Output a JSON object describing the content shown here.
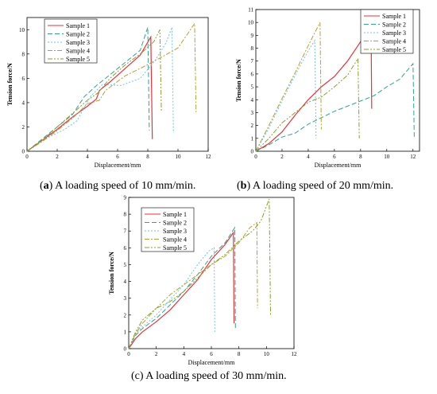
{
  "figure": {
    "colors": {
      "sample1": "#e8333a",
      "sample2": "#2ea58f",
      "sample3": "#6dc7e6",
      "sample4": "#b3a233",
      "sample5": "#8aa02b"
    }
  },
  "chart_data": [
    {
      "id": "a",
      "type": "line",
      "caption_letter": "a",
      "caption_text": " A loading speed of 10 mm/min.",
      "xlabel": "Displacement/mm",
      "ylabel": "Tension force/N",
      "xlim": [
        0,
        12
      ],
      "ylim": [
        0,
        11
      ],
      "xticks": [
        0,
        2,
        4,
        6,
        8,
        10,
        12
      ],
      "yticks": [
        0,
        2,
        4,
        6,
        8,
        10
      ],
      "legend_position": "top-left",
      "series": [
        {
          "name": "Sample 1",
          "points": [
            [
              0,
              0
            ],
            [
              1,
              0.9
            ],
            [
              2,
              1.8
            ],
            [
              3,
              2.8
            ],
            [
              4,
              3.7
            ],
            [
              4.6,
              4.3
            ],
            [
              4.8,
              5.0
            ],
            [
              5.5,
              5.7
            ],
            [
              6.5,
              6.8
            ],
            [
              7.5,
              7.9
            ],
            [
              8.2,
              9.4
            ],
            [
              8.3,
              1.0
            ]
          ]
        },
        {
          "name": "Sample 2",
          "points": [
            [
              0,
              0
            ],
            [
              1,
              1.0
            ],
            [
              2,
              2.0
            ],
            [
              3,
              3.0
            ],
            [
              3.8,
              4.5
            ],
            [
              4.6,
              5.4
            ],
            [
              5.5,
              6.3
            ],
            [
              6.5,
              7.3
            ],
            [
              7.5,
              8.3
            ],
            [
              8.0,
              10.2
            ],
            [
              8.1,
              1.7
            ]
          ]
        },
        {
          "name": "Sample 3",
          "points": [
            [
              0,
              0
            ],
            [
              1.5,
              1.2
            ],
            [
              2.5,
              1.8
            ],
            [
              3.3,
              2.5
            ],
            [
              4.2,
              4.5
            ],
            [
              5,
              5.5
            ],
            [
              6.2,
              5.4
            ],
            [
              7.5,
              6.0
            ],
            [
              8.5,
              7.5
            ],
            [
              9.2,
              8.9
            ],
            [
              9.6,
              10.2
            ],
            [
              9.7,
              1.5
            ]
          ]
        },
        {
          "name": "Sample 4",
          "points": [
            [
              0,
              0
            ],
            [
              1,
              0.8
            ],
            [
              2,
              1.7
            ],
            [
              3,
              2.7
            ],
            [
              4,
              3.9
            ],
            [
              4.8,
              4.2
            ],
            [
              5.2,
              5.0
            ],
            [
              6.5,
              6.2
            ],
            [
              7.8,
              7.0
            ],
            [
              9,
              7.8
            ],
            [
              10,
              8.5
            ],
            [
              10.5,
              9.4
            ],
            [
              11.1,
              10.5
            ],
            [
              11.2,
              3.2
            ]
          ]
        },
        {
          "name": "Sample 5",
          "points": [
            [
              0,
              0
            ],
            [
              1,
              0.9
            ],
            [
              2,
              2.0
            ],
            [
              3,
              3.1
            ],
            [
              4,
              4.2
            ],
            [
              4.7,
              4.8
            ],
            [
              5.5,
              6.0
            ],
            [
              6.5,
              7.1
            ],
            [
              7.5,
              8.0
            ],
            [
              8.4,
              9.0
            ],
            [
              8.8,
              10.0
            ],
            [
              8.9,
              3.3
            ]
          ]
        }
      ]
    },
    {
      "id": "b",
      "type": "line",
      "caption_letter": "b",
      "caption_text": " A loading speed of 20 mm/min.",
      "xlabel": "Displacement/mm",
      "ylabel": "Tension force/N",
      "xlim": [
        0,
        12.5
      ],
      "ylim": [
        0,
        11
      ],
      "xticks": [
        0,
        2,
        4,
        6,
        8,
        10,
        12
      ],
      "yticks": [
        0,
        1,
        2,
        3,
        4,
        5,
        6,
        7,
        8,
        9,
        10,
        11
      ],
      "legend_position": "top-right",
      "series": [
        {
          "name": "Sample 1",
          "points": [
            [
              0,
              0
            ],
            [
              1,
              0.6
            ],
            [
              2,
              1.5
            ],
            [
              3,
              2.8
            ],
            [
              4,
              4.0
            ],
            [
              5,
              5.0
            ],
            [
              6,
              5.8
            ],
            [
              7,
              7.0
            ],
            [
              8,
              8.5
            ],
            [
              8.8,
              10.1
            ],
            [
              8.85,
              3.3
            ]
          ]
        },
        {
          "name": "Sample 2",
          "points": [
            [
              0,
              0
            ],
            [
              1,
              0.5
            ],
            [
              2,
              1.1
            ],
            [
              3,
              1.4
            ],
            [
              4,
              2.1
            ],
            [
              5,
              2.6
            ],
            [
              6,
              3.1
            ],
            [
              7,
              3.5
            ],
            [
              8,
              3.9
            ],
            [
              9,
              4.3
            ],
            [
              10,
              5.0
            ],
            [
              11,
              5.6
            ],
            [
              12,
              6.8
            ],
            [
              12.1,
              1.0
            ]
          ]
        },
        {
          "name": "Sample 3",
          "points": [
            [
              0,
              0
            ],
            [
              1,
              1.8
            ],
            [
              2,
              3.9
            ],
            [
              3,
              5.9
            ],
            [
              4,
              7.8
            ],
            [
              4.5,
              8.6
            ],
            [
              4.6,
              1.0
            ]
          ]
        },
        {
          "name": "Sample 4",
          "points": [
            [
              0,
              0
            ],
            [
              1,
              2.0
            ],
            [
              2,
              4.1
            ],
            [
              3,
              6.1
            ],
            [
              4,
              8.2
            ],
            [
              4.9,
              10.0
            ],
            [
              5.0,
              1.7
            ]
          ]
        },
        {
          "name": "Sample 5",
          "points": [
            [
              0,
              0
            ],
            [
              1,
              1.0
            ],
            [
              2,
              2.2
            ],
            [
              3,
              3.0
            ],
            [
              4,
              3.8
            ],
            [
              5,
              4.2
            ],
            [
              6,
              5.0
            ],
            [
              7,
              5.9
            ],
            [
              7.8,
              7.2
            ],
            [
              7.9,
              1.0
            ]
          ]
        }
      ]
    },
    {
      "id": "c",
      "type": "line",
      "caption_letter": "c",
      "caption_text": " A loading speed of 30 mm/min.",
      "xlabel": "Displacement/mm",
      "ylabel": "Tension force/N",
      "xlim": [
        0,
        12
      ],
      "ylim": [
        0,
        9
      ],
      "xticks": [
        0,
        2,
        4,
        6,
        8,
        10,
        12
      ],
      "yticks": [
        0,
        1,
        2,
        3,
        4,
        5,
        6,
        7,
        8,
        9
      ],
      "legend_position": "top-left",
      "series": [
        {
          "name": "Sample 1",
          "points": [
            [
              0,
              0
            ],
            [
              0.5,
              0.6
            ],
            [
              1,
              1.0
            ],
            [
              2,
              1.6
            ],
            [
              3,
              2.3
            ],
            [
              4,
              3.2
            ],
            [
              5,
              4.1
            ],
            [
              6,
              5.3
            ],
            [
              7,
              6.2
            ],
            [
              7.6,
              6.9
            ],
            [
              7.65,
              1.5
            ]
          ]
        },
        {
          "name": "Sample 2",
          "points": [
            [
              0,
              0
            ],
            [
              0.5,
              0.8
            ],
            [
              1,
              1.2
            ],
            [
              2,
              1.8
            ],
            [
              3,
              2.6
            ],
            [
              4,
              3.4
            ],
            [
              5,
              4.4
            ],
            [
              6,
              5.5
            ],
            [
              7,
              6.3
            ],
            [
              7.7,
              7.2
            ],
            [
              7.75,
              1.2
            ]
          ]
        },
        {
          "name": "Sample 3",
          "points": [
            [
              0,
              0
            ],
            [
              0.4,
              0.8
            ],
            [
              1,
              1.3
            ],
            [
              2,
              2.0
            ],
            [
              3,
              2.9
            ],
            [
              4,
              3.8
            ],
            [
              5,
              5.0
            ],
            [
              5.8,
              5.8
            ],
            [
              6.2,
              6.0
            ],
            [
              6.25,
              1.0
            ]
          ]
        },
        {
          "name": "Sample 4",
          "points": [
            [
              0,
              0
            ],
            [
              0.5,
              0.9
            ],
            [
              1,
              1.5
            ],
            [
              2,
              2.4
            ],
            [
              3,
              3.2
            ],
            [
              4,
              3.8
            ],
            [
              5,
              4.4
            ],
            [
              6,
              5.0
            ],
            [
              7,
              5.5
            ],
            [
              8,
              6.3
            ],
            [
              8.8,
              7.2
            ],
            [
              9.3,
              7.5
            ],
            [
              9.35,
              2.4
            ]
          ]
        },
        {
          "name": "Sample 5",
          "points": [
            [
              0,
              0
            ],
            [
              0.5,
              1.0
            ],
            [
              1,
              1.7
            ],
            [
              2,
              2.4
            ],
            [
              3,
              2.8
            ],
            [
              4,
              3.4
            ],
            [
              5,
              4.2
            ],
            [
              6,
              5.0
            ],
            [
              7,
              5.6
            ],
            [
              8,
              6.4
            ],
            [
              9,
              7.0
            ],
            [
              9.6,
              7.6
            ],
            [
              10.2,
              8.9
            ],
            [
              10.3,
              2.0
            ]
          ]
        }
      ]
    }
  ]
}
